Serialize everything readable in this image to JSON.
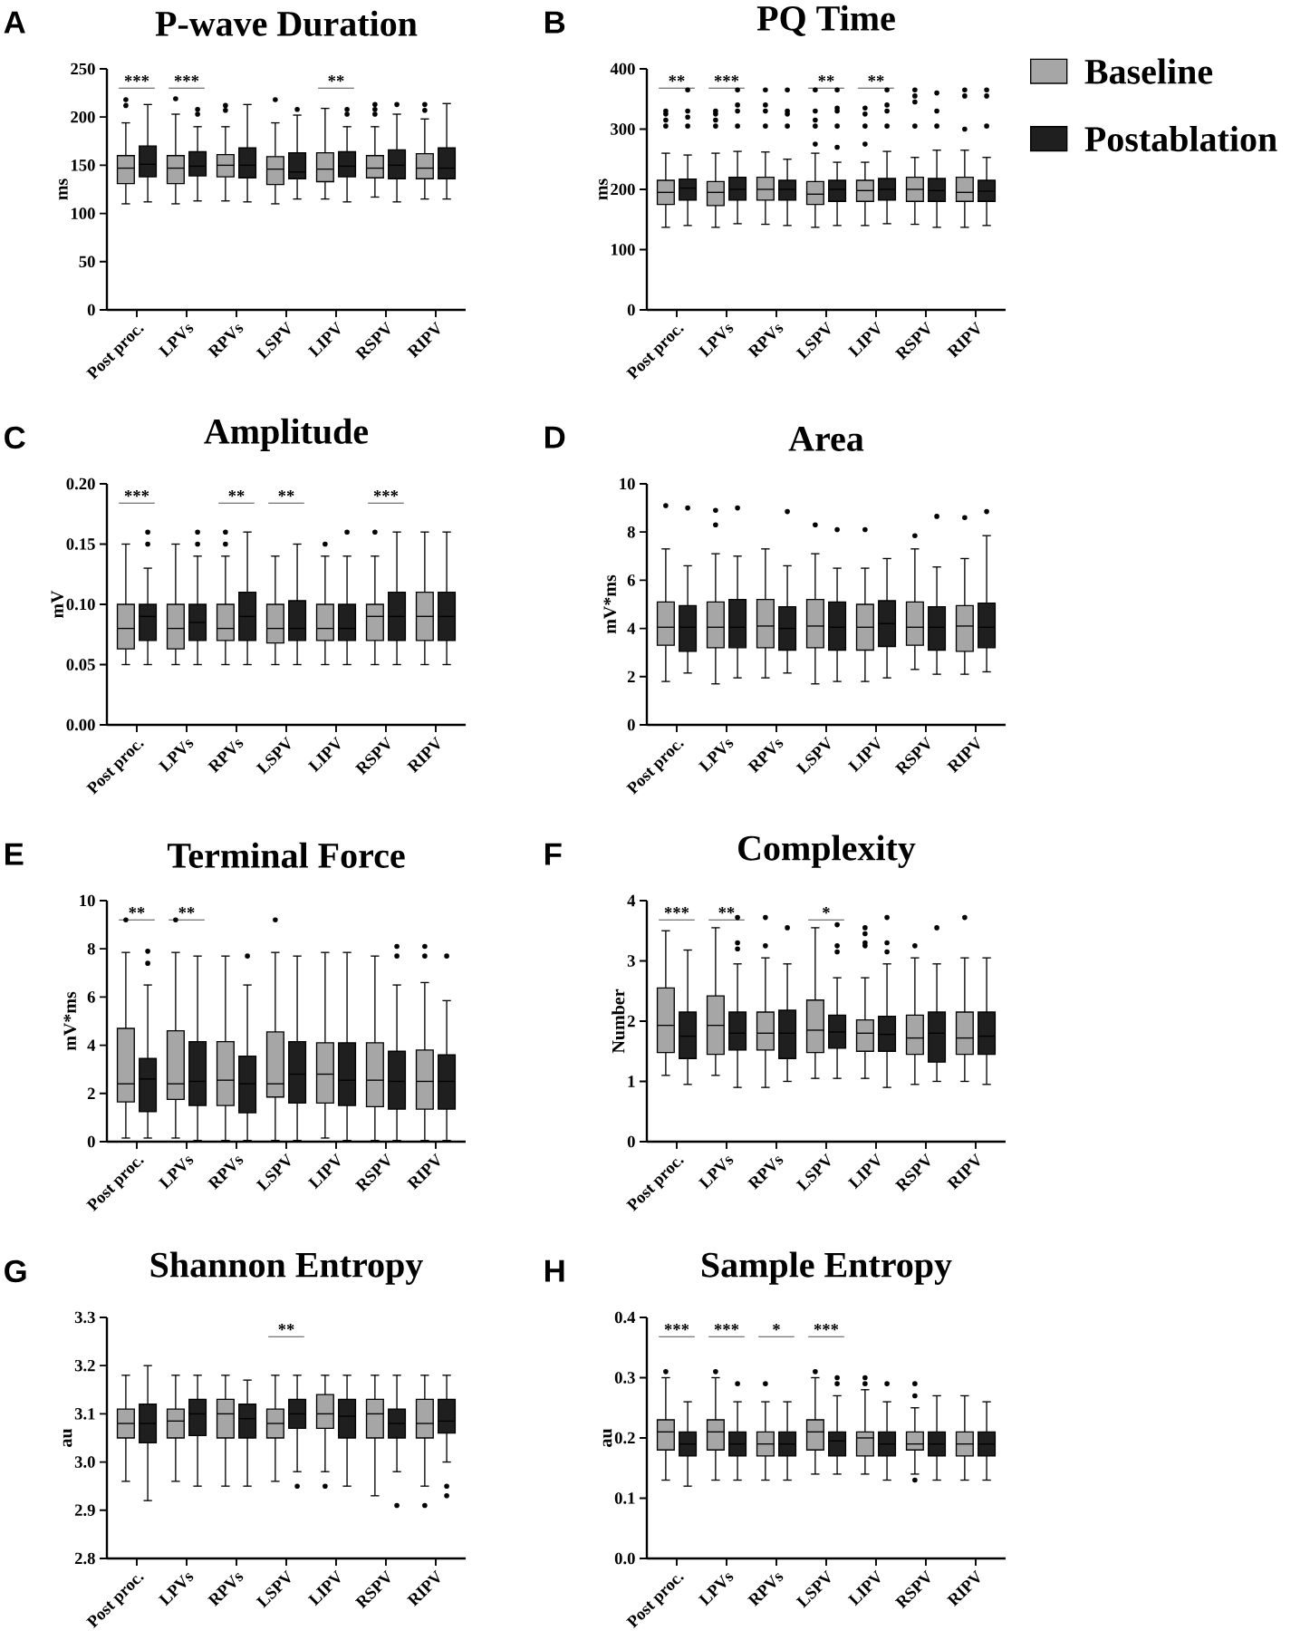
{
  "chart_data": [
    {
      "type": "box",
      "title": "P-wave Duration",
      "ylabel": "ms",
      "categories": [
        "Post proc.",
        "LPVs",
        "RPVs",
        "LSPV",
        "LIPV",
        "RSPV",
        "RIPV"
      ],
      "ylim": [
        0,
        250
      ],
      "yticks": [
        0,
        50,
        100,
        150,
        200,
        250
      ],
      "marker": "circle",
      "legend": false,
      "annotations": [
        "A",
        "***",
        "***",
        "**"
      ],
      "series": [
        {
          "color": "#a6a6a6",
          "boxes": [
            {
              "low": 110,
              "q1": 131,
              "median": 147,
              "q3": 160,
              "high": 194,
              "outliers": [
                218,
                212
              ]
            },
            {
              "low": 110,
              "q1": 131,
              "median": 147,
              "q3": 160,
              "high": 203,
              "outliers": [
                219
              ]
            },
            {
              "low": 113,
              "q1": 138,
              "median": 150,
              "q3": 161,
              "high": 190,
              "outliers": [
                207,
                212
              ]
            },
            {
              "low": 110,
              "q1": 130,
              "median": 146,
              "q3": 159,
              "high": 194,
              "outliers": [
                218
              ]
            },
            {
              "low": 115,
              "q1": 133,
              "median": 146,
              "q3": 163,
              "high": 209
            },
            {
              "low": 117,
              "q1": 137,
              "median": 147,
              "q3": 160,
              "high": 190,
              "outliers": [
                203,
                208,
                213
              ]
            },
            {
              "low": 115,
              "q1": 136,
              "median": 147,
              "q3": 162,
              "high": 198,
              "outliers": [
                207,
                213
              ]
            }
          ]
        },
        {
          "color": "#1f1f1f",
          "boxes": [
            {
              "low": 112,
              "q1": 138,
              "median": 151,
              "q3": 170,
              "high": 213
            },
            {
              "low": 113,
              "q1": 139,
              "median": 149,
              "q3": 164,
              "high": 190,
              "outliers": [
                203,
                208
              ]
            },
            {
              "low": 112,
              "q1": 137,
              "median": 150,
              "q3": 168,
              "high": 213
            },
            {
              "low": 115,
              "q1": 136,
              "median": 143,
              "q3": 163,
              "high": 202,
              "outliers": [
                208
              ]
            },
            {
              "low": 112,
              "q1": 138,
              "median": 149,
              "q3": 164,
              "high": 190,
              "outliers": [
                203,
                208
              ]
            },
            {
              "low": 112,
              "q1": 136,
              "median": 150,
              "q3": 166,
              "high": 203,
              "outliers": [
                213
              ]
            },
            {
              "low": 115,
              "q1": 136,
              "median": 147,
              "q3": 168,
              "high": 214
            }
          ]
        }
      ]
    },
    {
      "type": "box",
      "title": "PQ Time",
      "ylabel": "ms",
      "categories": [
        "Post proc.",
        "LPVs",
        "RPVs",
        "LSPV",
        "LIPV",
        "RSPV",
        "RIPV"
      ],
      "ylim": [
        0,
        400
      ],
      "yticks": [
        0,
        100,
        200,
        300,
        400
      ],
      "marker": "circle",
      "legend": "right",
      "annotations": [
        "B",
        "**",
        "***",
        "**",
        "**"
      ],
      "series": [
        {
          "name": "Baseline",
          "color": "#a6a6a6",
          "boxes": [
            {
              "low": 137,
              "q1": 175,
              "median": 195,
              "q3": 215,
              "high": 260,
              "outliers": [
                305,
                315,
                325,
                330
              ]
            },
            {
              "low": 137,
              "q1": 173,
              "median": 195,
              "q3": 213,
              "high": 260,
              "outliers": [
                305,
                315,
                325,
                330
              ]
            },
            {
              "low": 142,
              "q1": 182,
              "median": 200,
              "q3": 220,
              "high": 262,
              "outliers": [
                305,
                330,
                340,
                365
              ]
            },
            {
              "low": 137,
              "q1": 175,
              "median": 192,
              "q3": 213,
              "high": 260,
              "outliers": [
                275,
                305,
                315,
                330,
                365
              ]
            },
            {
              "low": 140,
              "q1": 180,
              "median": 198,
              "q3": 215,
              "high": 245,
              "outliers": [
                275,
                305,
                325,
                335
              ]
            },
            {
              "low": 142,
              "q1": 180,
              "median": 200,
              "q3": 220,
              "high": 253,
              "outliers": [
                305,
                345,
                355,
                365
              ]
            },
            {
              "low": 137,
              "q1": 180,
              "median": 195,
              "q3": 220,
              "high": 265,
              "outliers": [
                300,
                355,
                365
              ]
            }
          ]
        },
        {
          "name": "Postablation",
          "color": "#1f1f1f",
          "boxes": [
            {
              "low": 140,
              "q1": 182,
              "median": 202,
              "q3": 217,
              "high": 257,
              "outliers": [
                305,
                320,
                330,
                365
              ]
            },
            {
              "low": 143,
              "q1": 182,
              "median": 200,
              "q3": 220,
              "high": 263,
              "outliers": [
                305,
                330,
                340,
                365
              ]
            },
            {
              "low": 140,
              "q1": 182,
              "median": 200,
              "q3": 215,
              "high": 250,
              "outliers": [
                305,
                325,
                330,
                365
              ]
            },
            {
              "low": 140,
              "q1": 180,
              "median": 200,
              "q3": 215,
              "high": 245,
              "outliers": [
                270,
                305,
                330,
                335,
                365
              ]
            },
            {
              "low": 143,
              "q1": 182,
              "median": 200,
              "q3": 218,
              "high": 263,
              "outliers": [
                305,
                330,
                340,
                365
              ]
            },
            {
              "low": 137,
              "q1": 180,
              "median": 198,
              "q3": 218,
              "high": 265,
              "outliers": [
                305,
                330,
                360
              ]
            },
            {
              "low": 140,
              "q1": 180,
              "median": 197,
              "q3": 215,
              "high": 253,
              "outliers": [
                305,
                355,
                365
              ]
            }
          ]
        }
      ]
    },
    {
      "type": "box",
      "title": "Amplitude",
      "ylabel": "mV",
      "categories": [
        "Post proc.",
        "LPVs",
        "RPVs",
        "LSPV",
        "LIPV",
        "RSPV",
        "RIPV"
      ],
      "ylim": [
        0,
        0.2
      ],
      "yticks": [
        {
          "value": 0,
          "label": "0.00"
        },
        {
          "value": 0.05,
          "label": "0.05"
        },
        {
          "value": 0.1,
          "label": "0.10"
        },
        {
          "value": 0.15,
          "label": "0.15"
        },
        {
          "value": 0.2,
          "label": "0.20"
        }
      ],
      "marker": "circle",
      "legend": false,
      "annotations": [
        "C",
        "***",
        "**",
        "**",
        "***"
      ],
      "series": [
        {
          "color": "#a6a6a6",
          "boxes": [
            {
              "low": 0.05,
              "q1": 0.063,
              "median": 0.08,
              "q3": 0.1,
              "high": 0.15
            },
            {
              "low": 0.05,
              "q1": 0.063,
              "median": 0.08,
              "q3": 0.1,
              "high": 0.15
            },
            {
              "low": 0.05,
              "q1": 0.07,
              "median": 0.08,
              "q3": 0.1,
              "high": 0.14,
              "outliers": [
                0.15,
                0.16
              ]
            },
            {
              "low": 0.05,
              "q1": 0.068,
              "median": 0.08,
              "q3": 0.1,
              "high": 0.14
            },
            {
              "low": 0.05,
              "q1": 0.07,
              "median": 0.08,
              "q3": 0.1,
              "high": 0.14,
              "outliers": [
                0.15
              ]
            },
            {
              "low": 0.05,
              "q1": 0.07,
              "median": 0.09,
              "q3": 0.1,
              "high": 0.14,
              "outliers": [
                0.16
              ]
            },
            {
              "low": 0.05,
              "q1": 0.07,
              "median": 0.09,
              "q3": 0.11,
              "high": 0.16
            }
          ]
        },
        {
          "color": "#1f1f1f",
          "boxes": [
            {
              "low": 0.05,
              "q1": 0.07,
              "median": 0.09,
              "q3": 0.1,
              "high": 0.13,
              "outliers": [
                0.15,
                0.16
              ]
            },
            {
              "low": 0.05,
              "q1": 0.07,
              "median": 0.085,
              "q3": 0.1,
              "high": 0.14,
              "outliers": [
                0.15,
                0.16
              ]
            },
            {
              "low": 0.05,
              "q1": 0.07,
              "median": 0.09,
              "q3": 0.11,
              "high": 0.16
            },
            {
              "low": 0.05,
              "q1": 0.07,
              "median": 0.08,
              "q3": 0.103,
              "high": 0.15
            },
            {
              "low": 0.05,
              "q1": 0.07,
              "median": 0.08,
              "q3": 0.1,
              "high": 0.14,
              "outliers": [
                0.16
              ]
            },
            {
              "low": 0.05,
              "q1": 0.07,
              "median": 0.09,
              "q3": 0.11,
              "high": 0.16
            },
            {
              "low": 0.05,
              "q1": 0.07,
              "median": 0.09,
              "q3": 0.11,
              "high": 0.16
            }
          ]
        }
      ]
    },
    {
      "type": "box",
      "title": "Area",
      "ylabel": "mV*ms",
      "categories": [
        "Post proc.",
        "LPVs",
        "RPVs",
        "LSPV",
        "LIPV",
        "RSPV",
        "RIPV"
      ],
      "ylim": [
        0,
        10
      ],
      "yticks": [
        0,
        2,
        4,
        6,
        8,
        10
      ],
      "marker": "circle",
      "legend": false,
      "annotations": [
        "D"
      ],
      "series": [
        {
          "color": "#a6a6a6",
          "boxes": [
            {
              "low": 1.8,
              "q1": 3.3,
              "median": 4.05,
              "q3": 5.1,
              "high": 7.3,
              "outliers": [
                9.1
              ]
            },
            {
              "low": 1.7,
              "q1": 3.2,
              "median": 4.05,
              "q3": 5.1,
              "high": 7.1,
              "outliers": [
                8.3,
                8.9
              ]
            },
            {
              "low": 1.95,
              "q1": 3.2,
              "median": 4.1,
              "q3": 5.2,
              "high": 7.3
            },
            {
              "low": 1.7,
              "q1": 3.2,
              "median": 4.1,
              "q3": 5.2,
              "high": 7.1,
              "outliers": [
                8.3
              ]
            },
            {
              "low": 1.8,
              "q1": 3.1,
              "median": 4.05,
              "q3": 5.0,
              "high": 6.5,
              "outliers": [
                8.1
              ]
            },
            {
              "low": 2.3,
              "q1": 3.3,
              "median": 4.05,
              "q3": 5.1,
              "high": 7.3,
              "outliers": [
                7.85
              ]
            },
            {
              "low": 2.1,
              "q1": 3.05,
              "median": 4.1,
              "q3": 4.95,
              "high": 6.9,
              "outliers": [
                8.6
              ]
            }
          ]
        },
        {
          "color": "#1f1f1f",
          "boxes": [
            {
              "low": 2.15,
              "q1": 3.05,
              "median": 4.05,
              "q3": 4.95,
              "high": 6.6,
              "outliers": [
                9.0
              ]
            },
            {
              "low": 1.95,
              "q1": 3.2,
              "median": 4.05,
              "q3": 5.2,
              "high": 7.0,
              "outliers": [
                9.0
              ]
            },
            {
              "low": 2.15,
              "q1": 3.1,
              "median": 4.0,
              "q3": 4.9,
              "high": 6.6,
              "outliers": [
                8.85
              ]
            },
            {
              "low": 1.8,
              "q1": 3.1,
              "median": 4.05,
              "q3": 5.1,
              "high": 6.5,
              "outliers": [
                8.1
              ]
            },
            {
              "low": 1.95,
              "q1": 3.25,
              "median": 4.2,
              "q3": 5.15,
              "high": 6.9
            },
            {
              "low": 2.1,
              "q1": 3.1,
              "median": 4.05,
              "q3": 4.9,
              "high": 6.55,
              "outliers": [
                8.65
              ]
            },
            {
              "low": 2.2,
              "q1": 3.2,
              "median": 4.05,
              "q3": 5.05,
              "high": 7.85,
              "outliers": [
                8.85
              ]
            }
          ]
        }
      ]
    },
    {
      "type": "box",
      "title": "Terminal Force",
      "ylabel": "mV*ms",
      "categories": [
        "Post proc.",
        "LPVs",
        "RPVs",
        "LSPV",
        "LIPV",
        "RSPV",
        "RIPV"
      ],
      "ylim": [
        0,
        10
      ],
      "yticks": [
        0,
        2,
        4,
        6,
        8,
        10
      ],
      "marker": "circle",
      "legend": false,
      "annotations": [
        "E",
        "**",
        "**"
      ],
      "series": [
        {
          "color": "#a6a6a6",
          "boxes": [
            {
              "low": 0.15,
              "q1": 1.65,
              "median": 2.4,
              "q3": 4.7,
              "high": 7.85,
              "outliers": [
                9.2
              ]
            },
            {
              "low": 0.15,
              "q1": 1.75,
              "median": 2.4,
              "q3": 4.6,
              "high": 7.85,
              "outliers": [
                9.2
              ]
            },
            {
              "low": 0.05,
              "q1": 1.5,
              "median": 2.55,
              "q3": 4.15,
              "high": 7.7
            },
            {
              "low": 0.05,
              "q1": 1.85,
              "median": 2.4,
              "q3": 4.55,
              "high": 7.85,
              "outliers": [
                9.2
              ]
            },
            {
              "low": 0.15,
              "q1": 1.6,
              "median": 2.8,
              "q3": 4.1,
              "high": 7.85
            },
            {
              "low": 0.05,
              "q1": 1.45,
              "median": 2.55,
              "q3": 4.1,
              "high": 7.7
            },
            {
              "low": 0.05,
              "q1": 1.35,
              "median": 2.5,
              "q3": 3.8,
              "high": 6.6,
              "outliers": [
                7.7,
                8.1
              ]
            }
          ]
        },
        {
          "color": "#1f1f1f",
          "boxes": [
            {
              "low": 0.15,
              "q1": 1.25,
              "median": 2.6,
              "q3": 3.45,
              "high": 6.5,
              "outliers": [
                7.4,
                7.9
              ]
            },
            {
              "low": 0.05,
              "q1": 1.5,
              "median": 2.5,
              "q3": 4.15,
              "high": 7.7
            },
            {
              "low": 0.05,
              "q1": 1.2,
              "median": 2.4,
              "q3": 3.55,
              "high": 6.5,
              "outliers": [
                7.7
              ]
            },
            {
              "low": 0.05,
              "q1": 1.6,
              "median": 2.8,
              "q3": 4.15,
              "high": 7.7
            },
            {
              "low": 0.05,
              "q1": 1.5,
              "median": 2.55,
              "q3": 4.1,
              "high": 7.85
            },
            {
              "low": 0.05,
              "q1": 1.35,
              "median": 2.5,
              "q3": 3.75,
              "high": 6.5,
              "outliers": [
                7.7,
                8.1
              ]
            },
            {
              "low": 0.05,
              "q1": 1.35,
              "median": 2.5,
              "q3": 3.6,
              "high": 5.85,
              "outliers": [
                7.7
              ]
            }
          ]
        }
      ]
    },
    {
      "type": "box",
      "title": "Complexity",
      "ylabel": "Number",
      "categories": [
        "Post proc.",
        "LPVs",
        "RPVs",
        "LSPV",
        "LIPV",
        "RSPV",
        "RIPV"
      ],
      "ylim": [
        0,
        4
      ],
      "yticks": [
        0,
        1,
        2,
        3,
        4
      ],
      "marker": "circle",
      "legend": false,
      "annotations": [
        "F",
        "***",
        "**",
        "*"
      ],
      "series": [
        {
          "color": "#a6a6a6",
          "boxes": [
            {
              "low": 1.1,
              "q1": 1.48,
              "median": 1.93,
              "q3": 2.55,
              "high": 3.5
            },
            {
              "low": 1.1,
              "q1": 1.45,
              "median": 1.93,
              "q3": 2.42,
              "high": 3.55
            },
            {
              "low": 0.9,
              "q1": 1.52,
              "median": 1.8,
              "q3": 2.15,
              "high": 3.05,
              "outliers": [
                3.25,
                3.72
              ]
            },
            {
              "low": 1.05,
              "q1": 1.48,
              "median": 1.85,
              "q3": 2.35,
              "high": 3.55
            },
            {
              "low": 1.05,
              "q1": 1.5,
              "median": 1.8,
              "q3": 2.02,
              "high": 2.72,
              "outliers": [
                3.25,
                3.3,
                3.45,
                3.55
              ]
            },
            {
              "low": 0.95,
              "q1": 1.45,
              "median": 1.72,
              "q3": 2.1,
              "high": 3.05,
              "outliers": [
                3.25
              ]
            },
            {
              "low": 1.0,
              "q1": 1.45,
              "median": 1.72,
              "q3": 2.15,
              "high": 3.05,
              "outliers": [
                3.72
              ]
            }
          ]
        },
        {
          "color": "#1f1f1f",
          "boxes": [
            {
              "low": 0.95,
              "q1": 1.38,
              "median": 1.75,
              "q3": 2.15,
              "high": 3.18
            },
            {
              "low": 0.9,
              "q1": 1.52,
              "median": 1.8,
              "q3": 2.15,
              "high": 2.95,
              "outliers": [
                3.2,
                3.3,
                3.72
              ]
            },
            {
              "low": 1.0,
              "q1": 1.38,
              "median": 1.8,
              "q3": 2.18,
              "high": 2.95,
              "outliers": [
                3.55
              ]
            },
            {
              "low": 1.05,
              "q1": 1.55,
              "median": 1.82,
              "q3": 2.1,
              "high": 2.72,
              "outliers": [
                3.15,
                3.25,
                3.6
              ]
            },
            {
              "low": 0.9,
              "q1": 1.5,
              "median": 1.78,
              "q3": 2.08,
              "high": 2.95,
              "outliers": [
                3.15,
                3.3,
                3.72
              ]
            },
            {
              "low": 1.0,
              "q1": 1.32,
              "median": 1.8,
              "q3": 2.15,
              "high": 2.95,
              "outliers": [
                3.55
              ]
            },
            {
              "low": 0.95,
              "q1": 1.45,
              "median": 1.75,
              "q3": 2.15,
              "high": 3.05
            }
          ]
        }
      ]
    },
    {
      "type": "box",
      "title": "Shannon Entropy",
      "ylabel": "au",
      "categories": [
        "Post proc.",
        "LPVs",
        "RPVs",
        "LSPV",
        "LIPV",
        "RSPV",
        "RIPV"
      ],
      "ylim": [
        2.8,
        3.3
      ],
      "yticks": [
        2.8,
        2.9,
        {
          "value": 3.0,
          "label": "3.0"
        },
        3.1,
        3.2,
        3.3
      ],
      "marker": "circle",
      "legend": false,
      "annotations": [
        "G",
        "**"
      ],
      "series": [
        {
          "color": "#a6a6a6",
          "boxes": [
            {
              "low": 2.96,
              "q1": 3.05,
              "median": 3.08,
              "q3": 3.11,
              "high": 3.18
            },
            {
              "low": 2.96,
              "q1": 3.05,
              "median": 3.085,
              "q3": 3.11,
              "high": 3.18
            },
            {
              "low": 2.95,
              "q1": 3.05,
              "median": 3.1,
              "q3": 3.13,
              "high": 3.18
            },
            {
              "low": 2.96,
              "q1": 3.05,
              "median": 3.08,
              "q3": 3.11,
              "high": 3.18
            },
            {
              "low": 2.98,
              "q1": 3.07,
              "median": 3.1,
              "q3": 3.14,
              "high": 3.18,
              "outliers": [
                2.95
              ]
            },
            {
              "low": 2.93,
              "q1": 3.05,
              "median": 3.1,
              "q3": 3.13,
              "high": 3.18
            },
            {
              "low": 2.95,
              "q1": 3.05,
              "median": 3.08,
              "q3": 3.13,
              "high": 3.18,
              "outliers": [
                2.91
              ]
            }
          ]
        },
        {
          "color": "#1f1f1f",
          "boxes": [
            {
              "low": 2.92,
              "q1": 3.04,
              "median": 3.08,
              "q3": 3.12,
              "high": 3.2
            },
            {
              "low": 2.95,
              "q1": 3.055,
              "median": 3.1,
              "q3": 3.13,
              "high": 3.18
            },
            {
              "low": 2.95,
              "q1": 3.05,
              "median": 3.09,
              "q3": 3.12,
              "high": 3.17
            },
            {
              "low": 2.98,
              "q1": 3.07,
              "median": 3.1,
              "q3": 3.13,
              "high": 3.18,
              "outliers": [
                2.95
              ]
            },
            {
              "low": 2.95,
              "q1": 3.05,
              "median": 3.095,
              "q3": 3.13,
              "high": 3.18
            },
            {
              "low": 2.98,
              "q1": 3.05,
              "median": 3.08,
              "q3": 3.11,
              "high": 3.18,
              "outliers": [
                2.91
              ]
            },
            {
              "low": 3.0,
              "q1": 3.06,
              "median": 3.085,
              "q3": 3.13,
              "high": 3.18,
              "outliers": [
                2.93,
                2.95
              ]
            }
          ]
        }
      ]
    },
    {
      "type": "box",
      "title": "Sample Entropy",
      "ylabel": "au",
      "categories": [
        "Post proc.",
        "LPVs",
        "RPVs",
        "LSPV",
        "LIPV",
        "RSPV",
        "RIPV"
      ],
      "ylim": [
        0,
        0.4
      ],
      "yticks": [
        {
          "value": 0,
          "label": "0.0"
        },
        0.1,
        0.2,
        0.3,
        0.4
      ],
      "marker": "circle",
      "legend": false,
      "annotations": [
        "H",
        "***",
        "***",
        "*",
        "***"
      ],
      "series": [
        {
          "color": "#a6a6a6",
          "boxes": [
            {
              "low": 0.13,
              "q1": 0.18,
              "median": 0.21,
              "q3": 0.23,
              "high": 0.3,
              "outliers": [
                0.31
              ]
            },
            {
              "low": 0.13,
              "q1": 0.18,
              "median": 0.21,
              "q3": 0.23,
              "high": 0.3,
              "outliers": [
                0.31
              ]
            },
            {
              "low": 0.13,
              "q1": 0.17,
              "median": 0.19,
              "q3": 0.21,
              "high": 0.26,
              "outliers": [
                0.29
              ]
            },
            {
              "low": 0.14,
              "q1": 0.18,
              "median": 0.21,
              "q3": 0.23,
              "high": 0.3,
              "outliers": [
                0.31
              ]
            },
            {
              "low": 0.14,
              "q1": 0.17,
              "median": 0.2,
              "q3": 0.21,
              "high": 0.28,
              "outliers": [
                0.29,
                0.3
              ]
            },
            {
              "low": 0.14,
              "q1": 0.18,
              "median": 0.19,
              "q3": 0.21,
              "high": 0.25,
              "outliers": [
                0.13,
                0.27,
                0.29
              ]
            },
            {
              "low": 0.13,
              "q1": 0.17,
              "median": 0.19,
              "q3": 0.21,
              "high": 0.27
            }
          ]
        },
        {
          "color": "#1f1f1f",
          "boxes": [
            {
              "low": 0.12,
              "q1": 0.17,
              "median": 0.19,
              "q3": 0.21,
              "high": 0.26
            },
            {
              "low": 0.13,
              "q1": 0.17,
              "median": 0.19,
              "q3": 0.21,
              "high": 0.26,
              "outliers": [
                0.29
              ]
            },
            {
              "low": 0.13,
              "q1": 0.17,
              "median": 0.19,
              "q3": 0.21,
              "high": 0.26
            },
            {
              "low": 0.14,
              "q1": 0.17,
              "median": 0.195,
              "q3": 0.21,
              "high": 0.27,
              "outliers": [
                0.29,
                0.3
              ]
            },
            {
              "low": 0.13,
              "q1": 0.17,
              "median": 0.19,
              "q3": 0.21,
              "high": 0.26,
              "outliers": [
                0.29
              ]
            },
            {
              "low": 0.13,
              "q1": 0.17,
              "median": 0.19,
              "q3": 0.21,
              "high": 0.27
            },
            {
              "low": 0.13,
              "q1": 0.17,
              "median": 0.19,
              "q3": 0.21,
              "high": 0.26
            }
          ]
        }
      ]
    }
  ]
}
